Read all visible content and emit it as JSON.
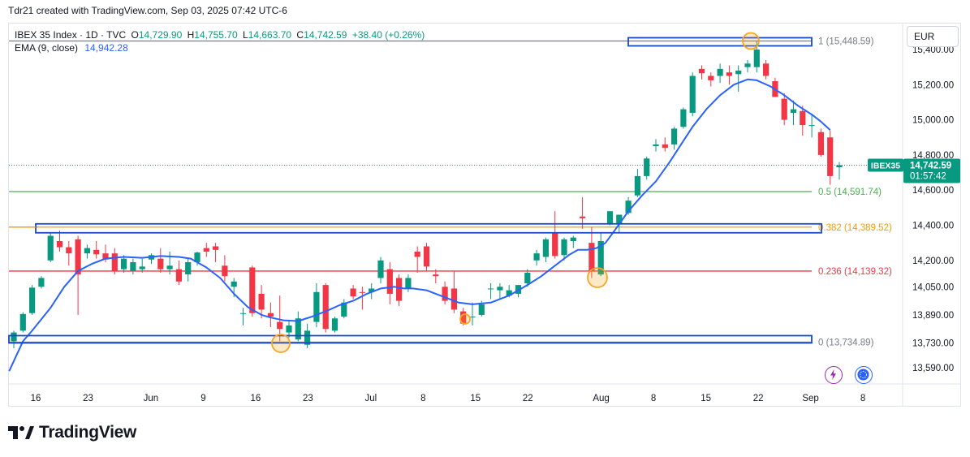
{
  "header": {
    "created_by": "Tdr21 created with TradingView.com, Sep 03, 2025 07:42 UTC-6"
  },
  "legend": {
    "symbol": "IBEX 35 Index · 1D · TVC",
    "o_label": "O",
    "o_val": "14,729.90",
    "h_label": "H",
    "h_val": "14,755.70",
    "l_label": "L",
    "l_val": "14,663.70",
    "c_label": "C",
    "c_val": "14,742.59",
    "change": "+38.40 (+0.26%)",
    "ema_label": "EMA (9, close)",
    "ema_val": "14,942.28"
  },
  "currency": "EUR",
  "price_badge": {
    "ticker": "IBEX35",
    "price": "14,742.59",
    "countdown": "01:57:42"
  },
  "brand": "TradingView",
  "colors": {
    "up": "#089981",
    "down": "#f23645",
    "ema": "#2962ff",
    "fib_1": "#787b86",
    "fib_05": "#4caf50",
    "fib_0382": "#ff9800",
    "fib_0236": "#f23645",
    "fib_0": "#787b86",
    "box": "#1848cc",
    "circle": "#f5a623"
  },
  "chart_data": {
    "type": "candlestick",
    "ylim": [
      13480,
      15500
    ],
    "y_ticks": [
      "15,400.00",
      "15,200.00",
      "15,000.00",
      "14,800.00",
      "14,600.00",
      "14,400.00",
      "14,200.00",
      "14,050.00",
      "13,890.00",
      "13,730.00",
      "13,590.00"
    ],
    "y_tick_values": [
      15400,
      15200,
      15000,
      14800,
      14600,
      14400,
      14200,
      14050,
      13890,
      13730,
      13590
    ],
    "x_ticks": [
      {
        "label": "16",
        "day": 0
      },
      {
        "label": "23",
        "day": 5
      },
      {
        "label": "Jun",
        "day": 11
      },
      {
        "label": "9",
        "day": 16
      },
      {
        "label": "16",
        "day": 21
      },
      {
        "label": "23",
        "day": 26
      },
      {
        "label": "Jul",
        "day": 32
      },
      {
        "label": "8",
        "day": 37
      },
      {
        "label": "15",
        "day": 42
      },
      {
        "label": "22",
        "day": 47
      },
      {
        "label": "Aug",
        "day": 54
      },
      {
        "label": "8",
        "day": 59
      },
      {
        "label": "15",
        "day": 64
      },
      {
        "label": "22",
        "day": 69
      },
      {
        "label": "Sep",
        "day": 74
      },
      {
        "label": "8",
        "day": 79
      }
    ],
    "fib_levels": [
      {
        "label": "1 (15,448.59)",
        "value": 15448.59,
        "color": "#787b86"
      },
      {
        "label": "0.5 (14,591.74)",
        "value": 14591.74,
        "color": "#4caf50"
      },
      {
        "label": "0.382 (14,389.52)",
        "value": 14389.52,
        "color": "#ff9800"
      },
      {
        "label": "0.236 (14,139.32)",
        "value": 14139.32,
        "color": "#f23645"
      },
      {
        "label": "0 (13,734.89)",
        "value": 13734.89,
        "color": "#787b86"
      }
    ],
    "candles": [
      [
        13740,
        13800,
        13700,
        13790
      ],
      [
        13800,
        13905,
        13790,
        13895
      ],
      [
        13900,
        14060,
        13890,
        14045
      ],
      [
        14050,
        14110,
        14040,
        14100
      ],
      [
        14200,
        14360,
        14190,
        14340
      ],
      [
        14310,
        14370,
        14250,
        14275
      ],
      [
        14275,
        14310,
        14170,
        14240
      ],
      [
        14320,
        14340,
        13890,
        14120
      ],
      [
        14240,
        14290,
        14210,
        14270
      ],
      [
        14260,
        14310,
        14210,
        14235
      ],
      [
        14240,
        14290,
        14190,
        14205
      ],
      [
        14240,
        14270,
        14120,
        14140
      ],
      [
        14150,
        14230,
        14130,
        14210
      ],
      [
        14140,
        14210,
        14120,
        14190
      ],
      [
        14150,
        14210,
        14130,
        14165
      ],
      [
        14205,
        14240,
        14180,
        14230
      ],
      [
        14210,
        14270,
        14130,
        14150
      ],
      [
        14150,
        14250,
        14120,
        14170
      ],
      [
        14150,
        14200,
        14060,
        14080
      ],
      [
        14120,
        14210,
        14080,
        14190
      ],
      [
        14190,
        14250,
        14170,
        14245
      ],
      [
        14270,
        14300,
        14220,
        14250
      ],
      [
        14280,
        14300,
        14190,
        14260
      ],
      [
        14170,
        14230,
        14080,
        14110
      ],
      [
        14050,
        14100,
        13990,
        14080
      ],
      [
        13900,
        13930,
        13830,
        13900
      ],
      [
        14160,
        14170,
        13880,
        13900
      ],
      [
        14010,
        14060,
        13870,
        13920
      ],
      [
        13900,
        13960,
        13820,
        13880
      ],
      [
        13850,
        14000,
        13740,
        13810
      ],
      [
        13790,
        13860,
        13760,
        13830
      ],
      [
        13750,
        13910,
        13740,
        13870
      ],
      [
        13720,
        13840,
        13700,
        13800
      ],
      [
        13850,
        14070,
        13820,
        14020
      ],
      [
        14060,
        14070,
        13790,
        13810
      ],
      [
        13800,
        13880,
        13790,
        13870
      ],
      [
        13880,
        13980,
        13870,
        13960
      ],
      [
        14040,
        14060,
        13980,
        13995
      ],
      [
        14020,
        14050,
        13920,
        14015
      ],
      [
        14020,
        14070,
        13980,
        14040
      ],
      [
        14100,
        14220,
        14070,
        14200
      ],
      [
        14150,
        14190,
        13950,
        14010
      ],
      [
        14100,
        14120,
        13940,
        13970
      ],
      [
        14040,
        14120,
        14020,
        14100
      ],
      [
        14250,
        14280,
        14130,
        14220
      ],
      [
        14280,
        14300,
        14140,
        14165
      ],
      [
        14120,
        14150,
        14070,
        14110
      ],
      [
        14050,
        14080,
        13950,
        13970
      ],
      [
        14040,
        14140,
        13900,
        13920
      ],
      [
        13910,
        13930,
        13830,
        13840
      ],
      [
        13880,
        13960,
        13830,
        13880
      ],
      [
        13890,
        13970,
        13880,
        13950
      ],
      [
        14040,
        14070,
        13980,
        14040
      ],
      [
        14030,
        14070,
        13980,
        14050
      ],
      [
        14000,
        14060,
        13990,
        14030
      ],
      [
        14010,
        14060,
        13990,
        14060
      ],
      [
        14070,
        14150,
        14050,
        14130
      ],
      [
        14200,
        14260,
        14170,
        14240
      ],
      [
        14220,
        14330,
        14190,
        14320
      ],
      [
        14360,
        14480,
        14210,
        14225
      ],
      [
        14230,
        14330,
        14200,
        14320
      ],
      [
        14310,
        14340,
        14270,
        14330
      ],
      [
        14450,
        14560,
        14380,
        14440
      ],
      [
        14300,
        14390,
        14100,
        14140
      ],
      [
        14120,
        14360,
        14110,
        14310
      ],
      [
        14410,
        14480,
        14400,
        14480
      ],
      [
        14410,
        14460,
        14360,
        14460
      ],
      [
        14470,
        14560,
        14460,
        14540
      ],
      [
        14570,
        14720,
        14560,
        14680
      ],
      [
        14680,
        14790,
        14660,
        14780
      ],
      [
        14850,
        14890,
        14820,
        14860
      ],
      [
        14860,
        14900,
        14820,
        14840
      ],
      [
        14860,
        14960,
        14830,
        14950
      ],
      [
        14960,
        15070,
        14950,
        15060
      ],
      [
        15040,
        15270,
        15020,
        15250
      ],
      [
        15290,
        15310,
        15230,
        15265
      ],
      [
        15250,
        15270,
        15190,
        15225
      ],
      [
        15250,
        15320,
        15210,
        15290
      ],
      [
        15270,
        15310,
        15200,
        15250
      ],
      [
        15260,
        15310,
        15160,
        15280
      ],
      [
        15300,
        15340,
        15270,
        15320
      ],
      [
        15300,
        15450,
        15270,
        15400
      ],
      [
        15320,
        15340,
        15230,
        15250
      ],
      [
        15220,
        15240,
        15130,
        15130
      ],
      [
        15120,
        15150,
        14970,
        15000
      ],
      [
        15040,
        15110,
        14970,
        15060
      ],
      [
        15050,
        15080,
        14910,
        14970
      ],
      [
        14970,
        15030,
        14900,
        14970
      ],
      [
        14930,
        14950,
        14790,
        14800
      ],
      [
        14900,
        14940,
        14630,
        14680
      ],
      [
        14730,
        14760,
        14660,
        14742
      ]
    ],
    "ema_points": [
      [
        -0.5,
        13570
      ],
      [
        1,
        13740
      ],
      [
        2,
        13800
      ],
      [
        4,
        13930
      ],
      [
        5.5,
        14050
      ],
      [
        7,
        14140
      ],
      [
        8.5,
        14180
      ],
      [
        10,
        14210
      ],
      [
        12,
        14220
      ],
      [
        14,
        14215
      ],
      [
        16,
        14225
      ],
      [
        18,
        14220
      ],
      [
        19.3,
        14210
      ],
      [
        21,
        14160
      ],
      [
        22.5,
        14100
      ],
      [
        24,
        14010
      ],
      [
        25.5,
        13935
      ],
      [
        27,
        13890
      ],
      [
        28,
        13875
      ],
      [
        29.5,
        13858
      ],
      [
        31,
        13855
      ],
      [
        32.5,
        13880
      ],
      [
        34,
        13910
      ],
      [
        35.5,
        13945
      ],
      [
        37,
        13970
      ],
      [
        38.5,
        14010
      ],
      [
        40,
        14040
      ],
      [
        41.5,
        14050
      ],
      [
        42.5,
        14040
      ],
      [
        43.5,
        14040
      ],
      [
        45,
        14030
      ],
      [
        46,
        14010
      ],
      [
        47.5,
        13980
      ],
      [
        48.5,
        13960
      ],
      [
        50,
        13950
      ],
      [
        52,
        13960
      ],
      [
        54,
        14000
      ],
      [
        56,
        14060
      ],
      [
        57.5,
        14110
      ],
      [
        59,
        14170
      ],
      [
        60.5,
        14230
      ],
      [
        61.5,
        14260
      ],
      [
        62.5,
        14260
      ],
      [
        63.5,
        14270
      ],
      [
        64.5,
        14300
      ],
      [
        65.5,
        14370
      ],
      [
        67,
        14480
      ],
      [
        68.5,
        14570
      ],
      [
        70,
        14650
      ],
      [
        71.5,
        14760
      ],
      [
        73,
        14880
      ],
      [
        74,
        14960
      ],
      [
        75.5,
        15060
      ],
      [
        77,
        15140
      ],
      [
        78.5,
        15200
      ],
      [
        80,
        15230
      ],
      [
        81,
        15225
      ],
      [
        82.5,
        15190
      ],
      [
        84,
        15140
      ],
      [
        85.5,
        15080
      ],
      [
        87,
        15030
      ],
      [
        88,
        14990
      ],
      [
        89,
        14942
      ]
    ]
  }
}
